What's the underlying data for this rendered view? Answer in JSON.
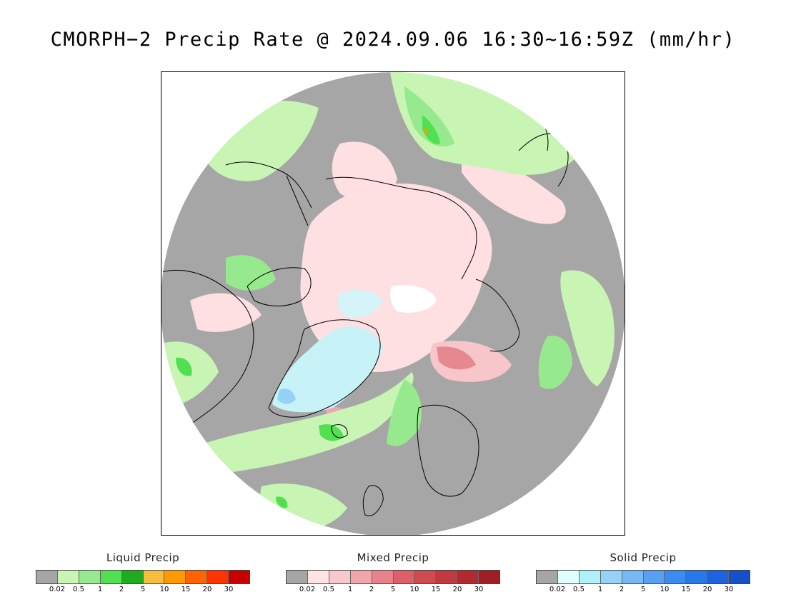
{
  "title": "CMORPH−2 Precip Rate @ 2024.09.06 16:30~16:59Z (mm/hr)",
  "legends": [
    {
      "title": "Liquid Precip",
      "colors": [
        "#a6a6a6",
        "#c8f5b4",
        "#96e98c",
        "#50e050",
        "#20aa20",
        "#f5be3c",
        "#ff9a00",
        "#ff6400",
        "#ff3200",
        "#c80000"
      ],
      "ticks": [
        "0.02",
        "0.5",
        "1",
        "2",
        "5",
        "10",
        "15",
        "20",
        "30"
      ]
    },
    {
      "title": "Mixed Precip",
      "colors": [
        "#a6a6a6",
        "#ffe4e6",
        "#f8c8cc",
        "#f0a6ac",
        "#e8828a",
        "#dc6068",
        "#d04a52",
        "#c03a40",
        "#b02a30",
        "#a01e24"
      ],
      "ticks": [
        "0.02",
        "0.5",
        "1",
        "2",
        "5",
        "10",
        "15",
        "20",
        "30"
      ]
    },
    {
      "title": "Solid Precip",
      "colors": [
        "#a6a6a6",
        "#e0ffff",
        "#b0f0f8",
        "#96d2f5",
        "#78b8f5",
        "#5aa0f0",
        "#3c8cf0",
        "#2878e8",
        "#1e64dc",
        "#1450c8"
      ],
      "ticks": [
        "0.02",
        "0.5",
        "1",
        "2",
        "5",
        "10",
        "15",
        "20",
        "30"
      ]
    }
  ],
  "map": {
    "no_precip_color": "#a6a6a6",
    "background_color": "#ffffff",
    "coastline_color": "#000000",
    "projection": "north polar stereographic"
  }
}
